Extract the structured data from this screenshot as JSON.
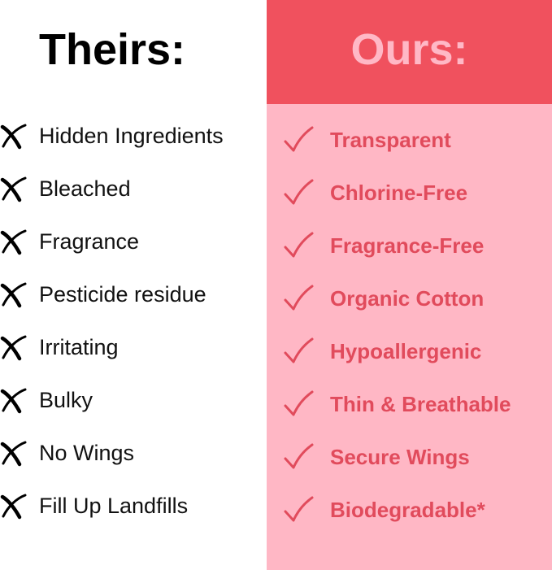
{
  "colors": {
    "header": "#f0515e",
    "panel": "#ffb7c5",
    "accent_text": "#e14b5c",
    "header_text": "#ffb8c6"
  },
  "theirs": {
    "title": "Theirs:",
    "icon": "x-mark-icon",
    "items": [
      "Hidden Ingredients",
      "Bleached",
      "Fragrance",
      "Pesticide residue",
      "Irritating",
      "Bulky",
      "No Wings",
      "Fill Up Landfills"
    ]
  },
  "ours": {
    "title": "Ours:",
    "icon": "check-mark-icon",
    "items": [
      "Transparent",
      "Chlorine-Free",
      "Fragrance-Free",
      "Organic Cotton",
      "Hypoallergenic",
      "Thin & Breathable",
      "Secure Wings",
      "Biodegradable*"
    ]
  }
}
